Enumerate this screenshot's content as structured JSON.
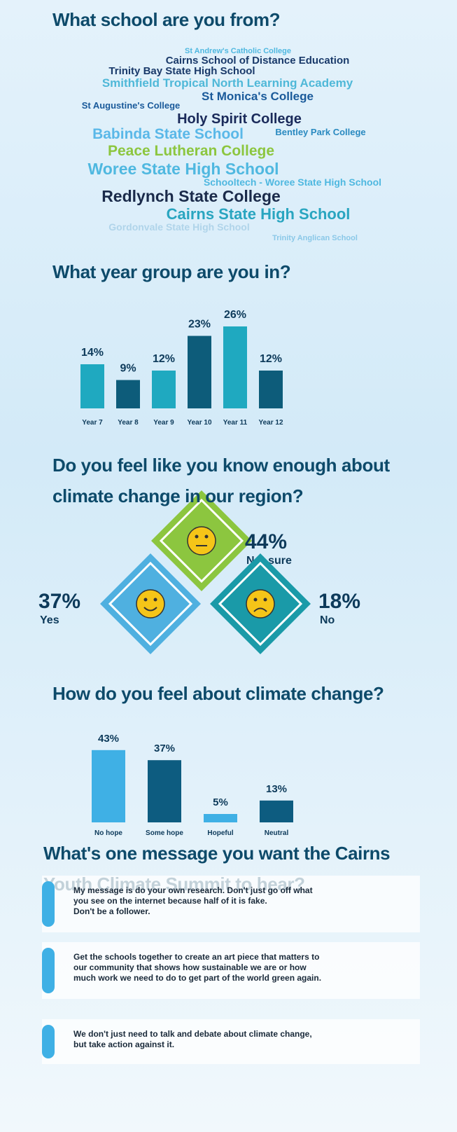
{
  "word_cloud": {
    "title": "What school are you from?",
    "words": [
      {
        "text": "St Andrew's Catholic College",
        "color": "#4fb8e0"
      },
      {
        "text": "Cairns School of Distance Education",
        "color": "#1a3a6a"
      },
      {
        "text": "Trinity Bay State High School",
        "color": "#1a3a6a"
      },
      {
        "text": "Smithfield Tropical North Learning Academy",
        "color": "#4fb8d8"
      },
      {
        "text": "St Augustine's College",
        "color": "#1a5a9a"
      },
      {
        "text": "St Monica's College",
        "color": "#1a5a9a"
      },
      {
        "text": "Holy Spirit College",
        "color": "#1a2a5a"
      },
      {
        "text": "Babinda State School",
        "color": "#5ab8e8"
      },
      {
        "text": "Bentley Park College",
        "color": "#2a8ac0"
      },
      {
        "text": "Peace Lutheran College",
        "color": "#8cc63f"
      },
      {
        "text": "Woree State High School",
        "color": "#4fb8e0"
      },
      {
        "text": "Schooltech - Woree State High School",
        "color": "#4fb8e0"
      },
      {
        "text": "Redlynch State College",
        "color": "#1a2a4a"
      },
      {
        "text": "Cairns State High School",
        "color": "#29a5c0"
      },
      {
        "text": "Gordonvale State High School",
        "color": "#b0d4ea"
      },
      {
        "text": "Trinity Anglican School",
        "color": "#8ac8e8"
      }
    ]
  },
  "chart_data": [
    {
      "type": "bar",
      "title": "What year group are you in?",
      "categories": [
        "Year 7",
        "Year 8",
        "Year 9",
        "Year 10",
        "Year 11",
        "Year 12"
      ],
      "values": [
        14,
        9,
        12,
        23,
        26,
        12
      ],
      "value_labels": [
        "14%",
        "9%",
        "12%",
        "23%",
        "26%",
        "12%"
      ],
      "colors": [
        "#1fa9c0",
        "#0d5c7a",
        "#1fa9c0",
        "#0d5c7a",
        "#1fa9c0",
        "#0d5c7a"
      ]
    },
    {
      "type": "diamond",
      "title": "Do you feel like you know enough about climate change in our region?",
      "categories": [
        "Not sure",
        "Yes",
        "No"
      ],
      "values": [
        44,
        37,
        18
      ],
      "value_labels": [
        "44%",
        "37%",
        "18%"
      ],
      "colors": [
        "#8cc63f",
        "#4fb0e0",
        "#1a9aa8"
      ]
    },
    {
      "type": "bar",
      "title": "How do you feel about climate change?",
      "categories": [
        "No hope",
        "Some hope",
        "Hopeful",
        "Neutral"
      ],
      "values": [
        43,
        37,
        5,
        13
      ],
      "value_labels": [
        "43%",
        "37%",
        "5%",
        "13%"
      ],
      "colors": [
        "#3fb0e5",
        "#0d5c80",
        "#3fb0e5",
        "#0d5c80"
      ]
    }
  ],
  "messages": {
    "title": "What's one message you want the Cairns Youth Climate Summit to hear?",
    "items": [
      {
        "lines": [
          "My message is do your own research. Don't just go off what",
          "you see on the internet because half of it is fake.",
          "Don't be a follower."
        ]
      },
      {
        "lines": [
          "Get the schools together to create an art piece that matters to",
          "our community that shows how sustainable we are or how",
          "much work we need to do to get part of the world green again."
        ]
      },
      {
        "lines": [
          "We don't just need to talk and debate about climate change,",
          "but take action against it."
        ]
      }
    ]
  }
}
